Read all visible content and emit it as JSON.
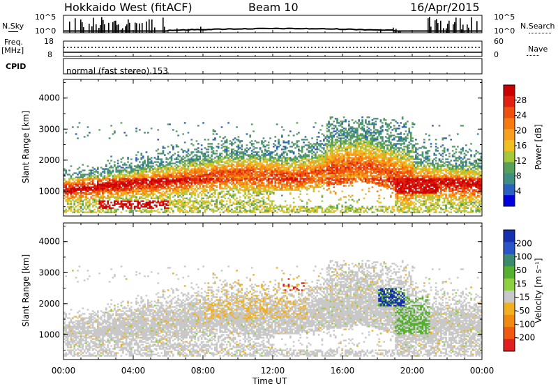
{
  "header": {
    "title": "Hokkaido West (fitACF)",
    "beam": "Beam 10",
    "date": "16/Apr/2015"
  },
  "summary_panels": {
    "nsky_label": "N.Sky",
    "nsky_ticks": [
      "10^5",
      "10^0"
    ],
    "nsearch_label": "N.Search",
    "nsearch_ticks": [
      "10^5",
      "10^0"
    ],
    "freq_label": "Freq.",
    "freq_unit": "[MHz]",
    "freq_ticks": [
      "18",
      "8"
    ],
    "nave_label": "Nave",
    "nave_ticks": [
      "60",
      "0"
    ],
    "cpid_label": "CPID",
    "cpid_value": "normal (fast stereo) 153"
  },
  "chart_data": [
    {
      "type": "heatmap",
      "name": "power",
      "ylabel": "Slant Range [km]",
      "ylim": [
        200,
        4600
      ],
      "yticks": [
        "4000",
        "3000",
        "2000",
        "1000"
      ],
      "ytick_values": [
        4000,
        3000,
        2000,
        1000
      ],
      "xlim": [
        0,
        24
      ],
      "colorbar_label": "Power [dB]",
      "colorbar_ticks": [
        "28",
        "24",
        "20",
        "16",
        "12",
        "8",
        "4"
      ],
      "colorbar_colors": [
        "#0000dd",
        "#2a60c0",
        "#3f8f80",
        "#56a05a",
        "#a8c83c",
        "#f0c020",
        "#f7a020",
        "#f57a10",
        "#ee5010",
        "#e02010",
        "#cc0000"
      ]
    },
    {
      "type": "heatmap",
      "name": "velocity",
      "ylabel": "Slant Range [km]",
      "ylim": [
        200,
        4600
      ],
      "yticks": [
        "4000",
        "3000",
        "2000",
        "1000"
      ],
      "ytick_values": [
        4000,
        3000,
        2000,
        1000
      ],
      "xlim": [
        0,
        24
      ],
      "xlabel": "Time UT",
      "xticks": [
        "00:00",
        "04:00",
        "08:00",
        "12:00",
        "16:00",
        "20:00",
        "00:00"
      ],
      "xtick_values": [
        0,
        4,
        8,
        12,
        16,
        20,
        24
      ],
      "colorbar_label": "Velocity [m s⁻¹]",
      "colorbar_ticks": [
        "200",
        "100",
        "50",
        "15",
        "-15",
        "-50",
        "-100",
        "-200"
      ],
      "colorbar_colors": [
        "#1530b0",
        "#2a55c8",
        "#3a8a70",
        "#55b030",
        "#8fd040",
        "#c8c8c8",
        "#f0b020",
        "#f08a10",
        "#f05a10",
        "#e02020"
      ]
    }
  ]
}
